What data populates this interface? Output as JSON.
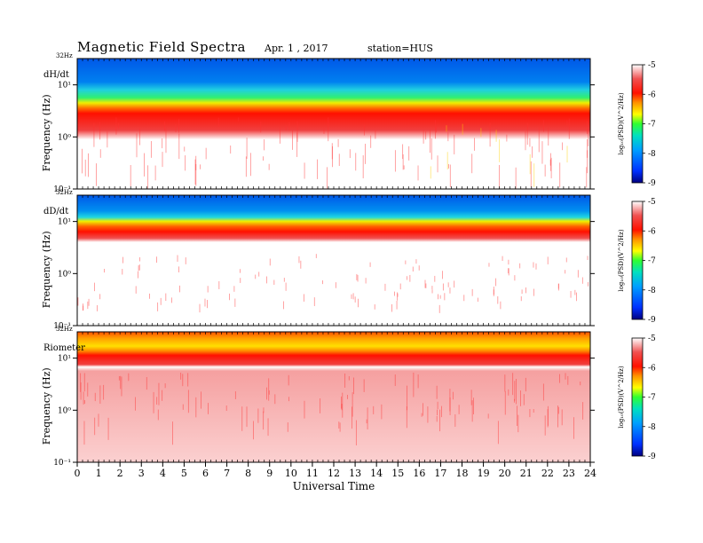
{
  "header": {
    "title": "Magnetic  Field  Spectra",
    "date": "Apr. 1  , 2017",
    "station": "station=HUS"
  },
  "chart_data": {
    "type": "heatmap",
    "xlabel": "Universal Time",
    "x_ticks": [
      "0",
      "1",
      "2",
      "3",
      "4",
      "5",
      "6",
      "7",
      "8",
      "9",
      "10",
      "11",
      "12",
      "13",
      "14",
      "15",
      "16",
      "17",
      "18",
      "19",
      "20",
      "21",
      "22",
      "23",
      "24"
    ],
    "xlim": [
      0,
      24
    ],
    "colorbar": {
      "label": "log₁₀(PSD)(V^2/Hz)",
      "ticks": [
        "-5",
        "-6",
        "-7",
        "-8",
        "-9"
      ],
      "range": [
        -9,
        -5
      ],
      "colors": [
        "#000080",
        "#0030ff",
        "#00c8ff",
        "#00e090",
        "#80ff00",
        "#ffff00",
        "#ffa000",
        "#ff2000",
        "#f04040",
        "#ffffff"
      ]
    },
    "panels": [
      {
        "label": "dH/dt",
        "top_label": "32Hz",
        "ylabel": "Frequency  (Hz)",
        "y_ticks": [
          "10¹",
          "10⁰",
          "10⁻¹"
        ],
        "ylog": true,
        "ylim": [
          0.1,
          32
        ]
      },
      {
        "label": "dD/dt",
        "top_label": "32Hz",
        "ylabel": "Frequency  (Hz)",
        "y_ticks": [
          "10¹",
          "10⁰",
          "10⁻¹"
        ],
        "ylog": true,
        "ylim": [
          0.1,
          32
        ]
      },
      {
        "label": "Riometer",
        "top_label": "32Hz",
        "ylabel": "Frequency  (Hz)",
        "y_ticks": [
          "10¹",
          "10⁰",
          "10⁻¹"
        ],
        "ylog": true,
        "ylim": [
          0.1,
          32
        ]
      }
    ]
  }
}
